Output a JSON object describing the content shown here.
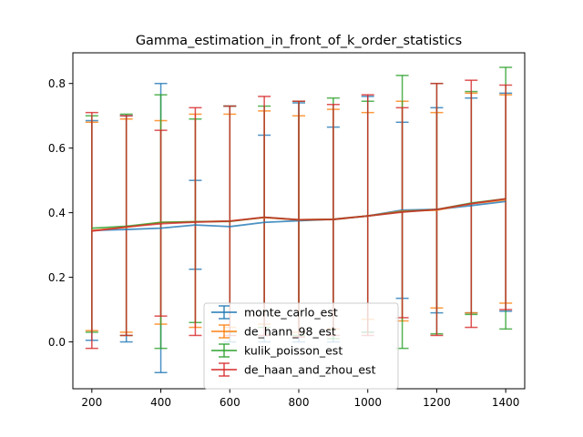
{
  "chart_data": {
    "type": "line",
    "title": "Gamma_estimation_in_front_of_k_order_statistics",
    "xlabel": "",
    "ylabel": "",
    "x": [
      200,
      300,
      400,
      500,
      600,
      700,
      800,
      900,
      1000,
      1100,
      1200,
      1300,
      1400
    ],
    "xlim": [
      145,
      1455
    ],
    "ylim": [
      -0.145,
      0.895
    ],
    "xticks": [
      200,
      400,
      600,
      800,
      1000,
      1200,
      1400
    ],
    "yticks": [
      0.0,
      0.2,
      0.4,
      0.6,
      0.8
    ],
    "ytick_labels": [
      "0.0",
      "0.2",
      "0.4",
      "0.6",
      "0.8"
    ],
    "grid": false,
    "legend_position": "lower-center",
    "series": [
      {
        "name": "monte_carlo_est",
        "color": "#1f77b4",
        "values": [
          0.345,
          0.348,
          0.352,
          0.362,
          0.357,
          0.37,
          0.375,
          0.38,
          0.39,
          0.408,
          0.41,
          0.422,
          0.435
        ],
        "lower": [
          0.005,
          0.0,
          -0.095,
          0.225,
          0.0,
          0.0,
          0.0,
          0.0,
          0.03,
          0.135,
          0.09,
          0.09,
          0.095
        ],
        "upper": [
          0.685,
          0.7,
          0.8,
          0.5,
          0.73,
          0.64,
          0.74,
          0.665,
          0.76,
          0.68,
          0.725,
          0.755,
          0.77
        ]
      },
      {
        "name": "de_hann_98_est",
        "color": "#ff7f0e",
        "values": [
          0.345,
          0.355,
          0.37,
          0.372,
          0.374,
          0.385,
          0.378,
          0.38,
          0.39,
          0.405,
          0.408,
          0.428,
          0.44
        ],
        "lower": [
          0.035,
          0.03,
          0.055,
          0.045,
          0.045,
          0.055,
          0.03,
          0.04,
          0.07,
          0.065,
          0.105,
          0.09,
          0.12
        ],
        "upper": [
          0.68,
          0.69,
          0.685,
          0.705,
          0.705,
          0.715,
          0.7,
          0.72,
          0.71,
          0.745,
          0.71,
          0.77,
          0.765
        ]
      },
      {
        "name": "kulik_poisson_est",
        "color": "#2ca02c",
        "values": [
          0.352,
          0.358,
          0.37,
          0.372,
          0.373,
          0.386,
          0.378,
          0.379,
          0.39,
          0.403,
          0.41,
          0.43,
          0.443
        ],
        "lower": [
          0.03,
          0.02,
          -0.02,
          0.06,
          0.03,
          0.045,
          0.02,
          0.01,
          0.03,
          -0.02,
          0.025,
          0.085,
          0.04
        ],
        "upper": [
          0.7,
          0.705,
          0.765,
          0.69,
          0.73,
          0.73,
          0.745,
          0.755,
          0.745,
          0.825,
          0.8,
          0.775,
          0.85
        ]
      },
      {
        "name": "de_haan_and_zhou_est",
        "color": "#d62728",
        "values": [
          0.343,
          0.356,
          0.366,
          0.371,
          0.374,
          0.386,
          0.378,
          0.379,
          0.39,
          0.402,
          0.41,
          0.428,
          0.443
        ],
        "lower": [
          -0.02,
          0.02,
          0.08,
          0.02,
          0.02,
          0.02,
          0.015,
          0.02,
          0.02,
          0.075,
          0.02,
          0.045,
          0.1
        ],
        "upper": [
          0.71,
          0.7,
          0.655,
          0.725,
          0.73,
          0.76,
          0.745,
          0.735,
          0.765,
          0.725,
          0.8,
          0.81,
          0.795
        ]
      }
    ],
    "mean_line_color": "#a0522d"
  }
}
